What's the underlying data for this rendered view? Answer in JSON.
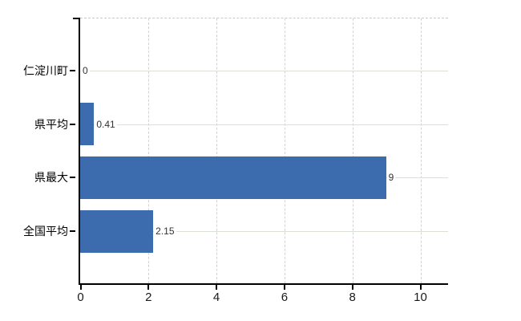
{
  "chart": {
    "background_color": "#ffffff",
    "bar_color": "#3c6cae",
    "axis_color": "#000000",
    "h_grid_color": "#dbe1d6",
    "v_grid_color": "#d6cfd6",
    "top_border_color": "#ccc7cc",
    "category_label_color": "#000000",
    "tick_label_color": "#1a1a1a",
    "value_label_color": "#333333"
  },
  "chart_data": {
    "type": "bar",
    "orientation": "horizontal",
    "title": "",
    "xlabel": "",
    "ylabel": "",
    "categories": [
      "仁淀川町",
      "県平均",
      "県最大",
      "全国平均"
    ],
    "values": [
      0,
      0.41,
      9,
      2.15
    ],
    "value_labels": [
      "0",
      "0.41",
      "9",
      "2.15"
    ],
    "x_ticks": [
      0,
      2,
      4,
      6,
      8,
      10
    ],
    "x_tick_labels": [
      "0",
      "2",
      "4",
      "6",
      "8",
      "10"
    ],
    "xlim": [
      0,
      10.8
    ],
    "grid": true,
    "legend": false
  }
}
